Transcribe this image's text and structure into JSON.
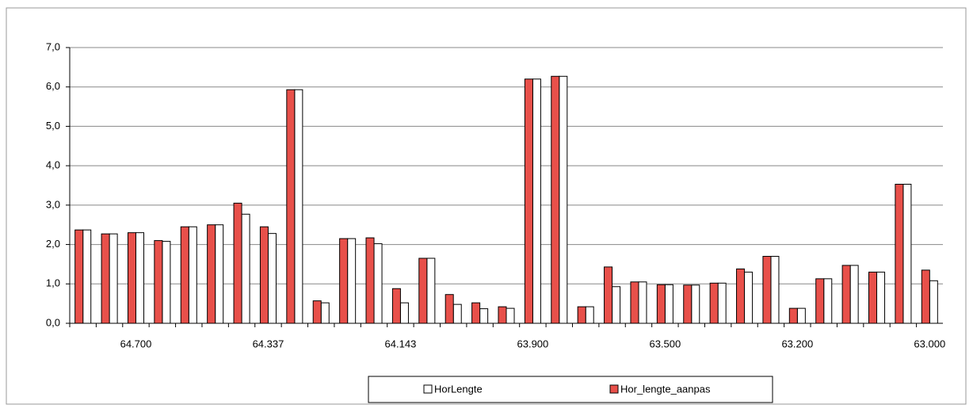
{
  "chart_data": {
    "type": "bar",
    "categories": [
      null,
      null,
      "64.700",
      null,
      null,
      null,
      null,
      "64.337",
      null,
      null,
      null,
      null,
      "64.143",
      null,
      null,
      null,
      null,
      "63.900",
      null,
      null,
      null,
      null,
      "63.500",
      null,
      null,
      null,
      null,
      "63.200",
      null,
      null,
      null,
      null,
      "63.000"
    ],
    "series": [
      {
        "name": "HorLengte",
        "color": "#ffffff",
        "values": [
          2.37,
          2.27,
          2.3,
          2.08,
          2.45,
          2.5,
          2.77,
          2.28,
          5.93,
          0.52,
          2.15,
          2.02,
          0.52,
          1.65,
          0.48,
          0.37,
          0.38,
          6.2,
          6.27,
          0.42,
          0.93,
          1.05,
          0.98,
          0.97,
          1.02,
          1.3,
          1.7,
          0.38,
          1.13,
          1.47,
          1.3,
          3.53,
          1.08
        ]
      },
      {
        "name": "Hor_lengte_aanpas",
        "color": "#e8504a",
        "values": [
          2.37,
          2.27,
          2.3,
          2.1,
          2.45,
          2.5,
          3.05,
          2.45,
          5.93,
          0.57,
          2.15,
          2.17,
          0.88,
          1.65,
          0.73,
          0.52,
          0.42,
          6.2,
          6.27,
          0.42,
          1.43,
          1.05,
          0.98,
          0.97,
          1.02,
          1.38,
          1.7,
          0.38,
          1.13,
          1.47,
          1.3,
          3.53,
          1.35
        ]
      }
    ],
    "ylim": [
      0,
      7
    ],
    "yticks": [
      {
        "value": 0,
        "label": "0,0"
      },
      {
        "value": 1,
        "label": "1,0"
      },
      {
        "value": 2,
        "label": "2,0"
      },
      {
        "value": 3,
        "label": "3,0"
      },
      {
        "value": 4,
        "label": "4,0"
      },
      {
        "value": 5,
        "label": "5,0"
      },
      {
        "value": 6,
        "label": "6,0"
      },
      {
        "value": 7,
        "label": "7,0"
      }
    ],
    "grid": true,
    "legend": "bottom"
  }
}
